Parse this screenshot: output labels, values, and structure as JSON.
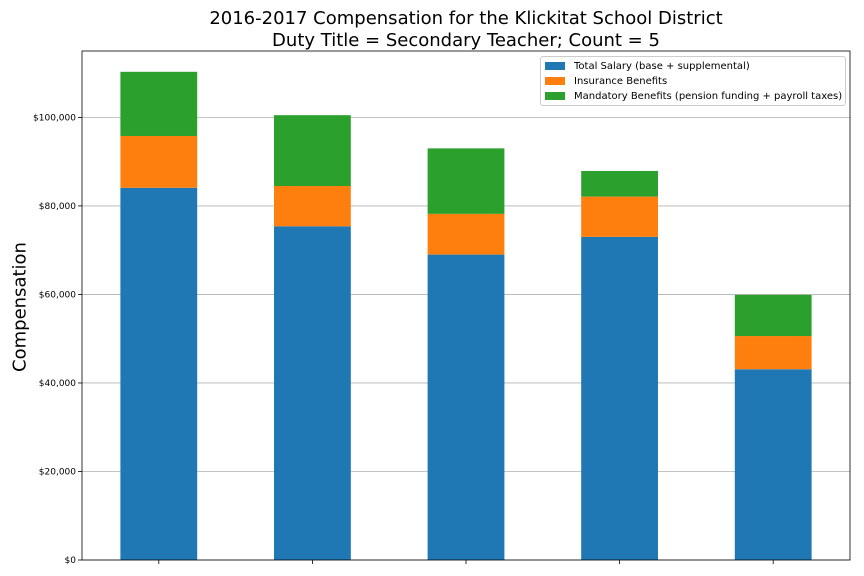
{
  "chart_data": {
    "type": "bar",
    "stacked": true,
    "title": "2016-2017 Compensation for the Klickitat School District",
    "subtitle": "Duty Title = Secondary Teacher; Count = 5",
    "ylabel": "Compensation",
    "xlabel": "",
    "categories": [
      "",
      "",
      "",
      "",
      ""
    ],
    "ylim": [
      0,
      115000
    ],
    "yticks": [
      0,
      20000,
      40000,
      60000,
      80000,
      100000
    ],
    "ytick_labels": [
      "$0",
      "$20,000",
      "$40,000",
      "$60,000",
      "$80,000",
      "$100,000"
    ],
    "grid": "horizontal",
    "legend_position": "top-right",
    "series": [
      {
        "name": "Total Salary (base + supplemental)",
        "color": "#1f77b4",
        "values": [
          84100,
          75400,
          69000,
          73000,
          43100
        ]
      },
      {
        "name": "Insurance Benefits",
        "color": "#ff7f0e",
        "values": [
          11700,
          9100,
          9200,
          9100,
          7500
        ]
      },
      {
        "name": "Mandatory Benefits (pension funding + payroll taxes)",
        "color": "#2ca02c",
        "values": [
          14500,
          16000,
          14800,
          5800,
          9300
        ]
      }
    ]
  }
}
